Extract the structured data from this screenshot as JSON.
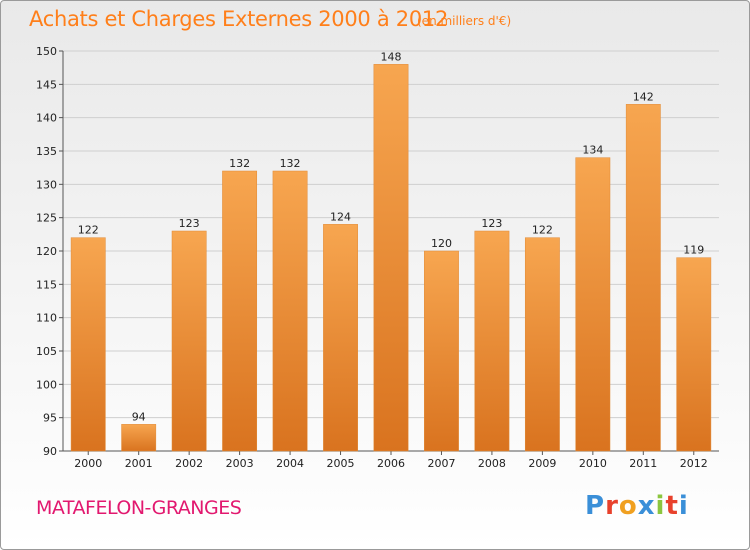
{
  "header": {
    "title": "Achats et Charges Externes 2000 à 2012",
    "subtitle": "(en milliers d'€)"
  },
  "footer": {
    "place": "MATAFELON-GRANGES",
    "logo": {
      "text": "Proxiti",
      "letter_colors": [
        "#3a8fd8",
        "#e8412c",
        "#f0a020",
        "#3a8fd8",
        "#8cc63f",
        "#e8412c",
        "#3a8fd8"
      ]
    }
  },
  "chart_data": {
    "type": "bar",
    "categories": [
      "2000",
      "2001",
      "2002",
      "2003",
      "2004",
      "2005",
      "2006",
      "2007",
      "2008",
      "2009",
      "2010",
      "2011",
      "2012"
    ],
    "values": [
      122,
      94,
      123,
      132,
      132,
      124,
      148,
      120,
      123,
      122,
      134,
      142,
      119
    ],
    "title": "Achats et Charges Externes 2000 à 2012",
    "xlabel": "",
    "ylabel": "",
    "ylim": [
      90,
      150
    ],
    "yticks": [
      90,
      95,
      100,
      105,
      110,
      115,
      120,
      125,
      130,
      135,
      140,
      145,
      150
    ],
    "grid": true,
    "bar_color": "#f29a3e"
  }
}
